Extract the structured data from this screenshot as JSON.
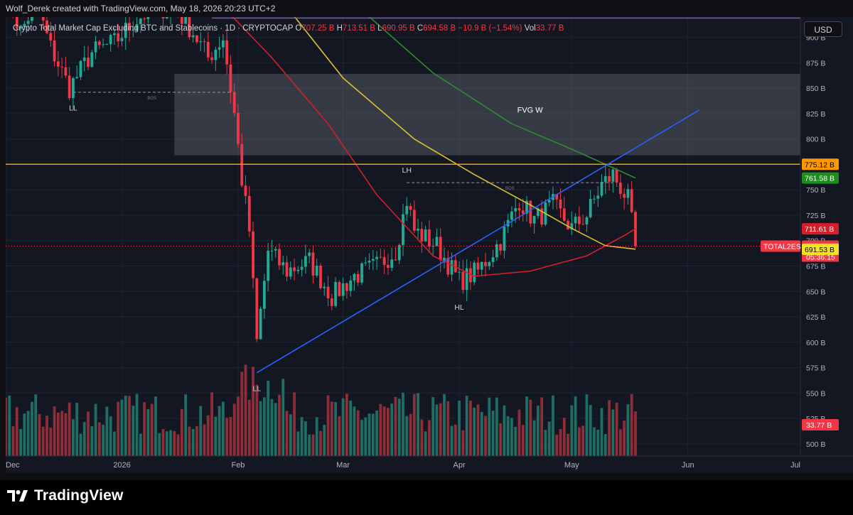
{
  "header": {
    "attribution": "Wolf_Derek created with TradingView.com, May 18, 2026 20:23 UTC+2"
  },
  "legend": {
    "title": "Crypto Total Market Cap Excluding BTC and Stablecoins",
    "interval": "· 1D ·",
    "exchange": "CRYPTOCAP",
    "o_label": "O",
    "o_value": "707.25 B",
    "h_label": "H",
    "h_value": "713.51 B",
    "l_label": "L",
    "l_value": "690.95 B",
    "c_label": "C",
    "c_value": "694.58 B",
    "change": "−10.9 B (−1.54%)",
    "vol_label": "Vol",
    "vol_value": "33.77 B"
  },
  "currency_button": "USD",
  "footer": {
    "brand": "TradingView"
  },
  "colors": {
    "background": "#131722",
    "up": "#22ab94",
    "down": "#f23645",
    "vol_up": "#1e6e64",
    "vol_down": "#8f2d39",
    "ma_fast": "#d21f2b",
    "ma_mid": "#d9c22e",
    "ma_slow": "#2e8b2e",
    "resistance": "#ff9800",
    "trendline": "#2962ff",
    "top_line": "#7e57c2"
  },
  "chart_data": {
    "type": "candlestick",
    "symbol": "TOTAL2ES",
    "title": "Crypto Total Market Cap Excluding BTC and Stablecoins",
    "y_unit": "B",
    "ylim": [
      488,
      920
    ],
    "y_ticks": [
      500,
      525,
      550,
      575,
      600,
      625,
      650,
      675,
      700,
      725,
      750,
      775,
      800,
      825,
      850,
      875,
      900
    ],
    "y_tick_labels": [
      "500 B",
      "525 B",
      "550 B",
      "575 B",
      "600 B",
      "625 B",
      "650 B",
      "675 B",
      "700 B",
      "725 B",
      "750 B",
      "775 B",
      "800 B",
      "825 B",
      "850 B",
      "875 B",
      "900 B"
    ],
    "x_range": [
      "2025-12-01",
      "2026-07-01"
    ],
    "x_ticks": [
      {
        "date": "2025-12-01",
        "label": "Dec"
      },
      {
        "date": "2026-01-01",
        "label": "2026"
      },
      {
        "date": "2026-02-01",
        "label": "Feb"
      },
      {
        "date": "2026-03-01",
        "label": "Mar"
      },
      {
        "date": "2026-04-01",
        "label": "Apr"
      },
      {
        "date": "2026-05-01",
        "label": "May"
      },
      {
        "date": "2026-06-01",
        "label": "Jun"
      },
      {
        "date": "2026-07-01",
        "label": "Jul"
      }
    ],
    "price_path": [
      [
        "2025-12-01",
        945
      ],
      [
        "2025-12-05",
        905
      ],
      [
        "2025-12-09",
        935
      ],
      [
        "2025-12-13",
        890
      ],
      [
        "2025-12-18",
        850
      ],
      [
        "2025-12-24",
        885
      ],
      [
        "2025-12-30",
        895
      ],
      [
        "2026-01-04",
        915
      ],
      [
        "2026-01-10",
        930
      ],
      [
        "2026-01-16",
        925
      ],
      [
        "2026-01-20",
        905
      ],
      [
        "2026-01-24",
        880
      ],
      [
        "2026-01-28",
        900
      ],
      [
        "2026-01-31",
        825
      ],
      [
        "2026-02-02",
        760
      ],
      [
        "2026-02-04",
        710
      ],
      [
        "2026-02-06",
        600
      ],
      [
        "2026-02-09",
        690
      ],
      [
        "2026-02-14",
        670
      ],
      [
        "2026-02-20",
        680
      ],
      [
        "2026-02-26",
        645
      ],
      [
        "2026-03-04",
        665
      ],
      [
        "2026-03-10",
        675
      ],
      [
        "2026-03-15",
        690
      ],
      [
        "2026-03-18",
        740
      ],
      [
        "2026-03-20",
        710
      ],
      [
        "2026-03-26",
        695
      ],
      [
        "2026-04-01",
        660
      ],
      [
        "2026-04-06",
        670
      ],
      [
        "2026-04-12",
        700
      ],
      [
        "2026-04-17",
        740
      ],
      [
        "2026-04-21",
        720
      ],
      [
        "2026-04-26",
        735
      ],
      [
        "2026-05-01",
        712
      ],
      [
        "2026-05-05",
        725
      ],
      [
        "2026-05-09",
        755
      ],
      [
        "2026-05-12",
        765
      ],
      [
        "2026-05-16",
        740
      ],
      [
        "2026-05-18",
        694.58
      ]
    ],
    "volume_unit": "B",
    "last_volume": 33.77,
    "moving_averages": [
      {
        "color": "#d21f2b",
        "points": [
          [
            "2026-01-28",
            930
          ],
          [
            "2026-02-10",
            880
          ],
          [
            "2026-02-25",
            815
          ],
          [
            "2026-03-10",
            745
          ],
          [
            "2026-03-25",
            685
          ],
          [
            "2026-04-05",
            665
          ],
          [
            "2026-04-20",
            670
          ],
          [
            "2026-05-05",
            685
          ],
          [
            "2026-05-15",
            705
          ],
          [
            "2026-05-18",
            711.61
          ]
        ]
      },
      {
        "color": "#d9c22e",
        "points": [
          [
            "2026-02-14",
            930
          ],
          [
            "2026-03-01",
            860
          ],
          [
            "2026-03-20",
            800
          ],
          [
            "2026-04-05",
            765
          ],
          [
            "2026-04-20",
            735
          ],
          [
            "2026-05-01",
            712
          ],
          [
            "2026-05-10",
            695
          ],
          [
            "2026-05-18",
            691.53
          ]
        ]
      },
      {
        "color": "#2e8b2e",
        "points": [
          [
            "2026-03-05",
            930
          ],
          [
            "2026-03-25",
            865
          ],
          [
            "2026-04-15",
            815
          ],
          [
            "2026-05-01",
            790
          ],
          [
            "2026-05-10",
            775
          ],
          [
            "2026-05-18",
            761.58
          ]
        ]
      }
    ],
    "horizontal_lines": [
      {
        "value": 775.12,
        "color": "#ff9800",
        "label": "775.12 B"
      }
    ],
    "top_line": {
      "value": 919,
      "color": "#7e57c2",
      "from": "2026-01-25"
    },
    "fvg_zone": {
      "from": "2026-01-15",
      "to": "2026-07-01",
      "top": 864,
      "bottom": 784,
      "label": "FVG W"
    },
    "trendline": {
      "from": [
        "2026-02-06",
        570
      ],
      "to": [
        "2026-06-04",
        828.5
      ],
      "color": "#2962ff"
    },
    "bos_lines": [
      {
        "from": "2025-12-19",
        "to": "2026-01-30",
        "value": 846,
        "label": "BOS"
      },
      {
        "from": "2026-03-18",
        "to": "2026-05-12",
        "value": 757,
        "label": "BOS"
      }
    ],
    "swing_labels": [
      {
        "date": "2025-12-19",
        "value": 828,
        "text": "LL"
      },
      {
        "date": "2026-02-06",
        "value": 552,
        "text": "LL"
      },
      {
        "date": "2026-03-18",
        "value": 767,
        "text": "LH"
      },
      {
        "date": "2026-04-01",
        "value": 632,
        "text": "HL"
      }
    ],
    "price_labels": [
      {
        "value": 775.12,
        "text": "775.12 B",
        "bg": "#ff9800",
        "fg": "#000000"
      },
      {
        "value": 761.58,
        "text": "761.58 B",
        "bg": "#1b8e1b",
        "fg": "#ffffff"
      },
      {
        "value": 711.61,
        "text": "711.61 B",
        "bg": "#d21f2b",
        "fg": "#ffffff"
      },
      {
        "value": 694.58,
        "text": "694.58 B",
        "bg": "#f23645",
        "fg": "#ffffff",
        "tag": "TOTAL2ES",
        "countdown": "05:36:15"
      },
      {
        "value": 691.53,
        "text": "691.53 B",
        "bg": "#f7e31f",
        "fg": "#000000"
      }
    ],
    "volume_label": {
      "text": "33.77 B",
      "bg": "#f23645",
      "fg": "#ffffff"
    },
    "grid": true,
    "legend_position": "top-left"
  }
}
